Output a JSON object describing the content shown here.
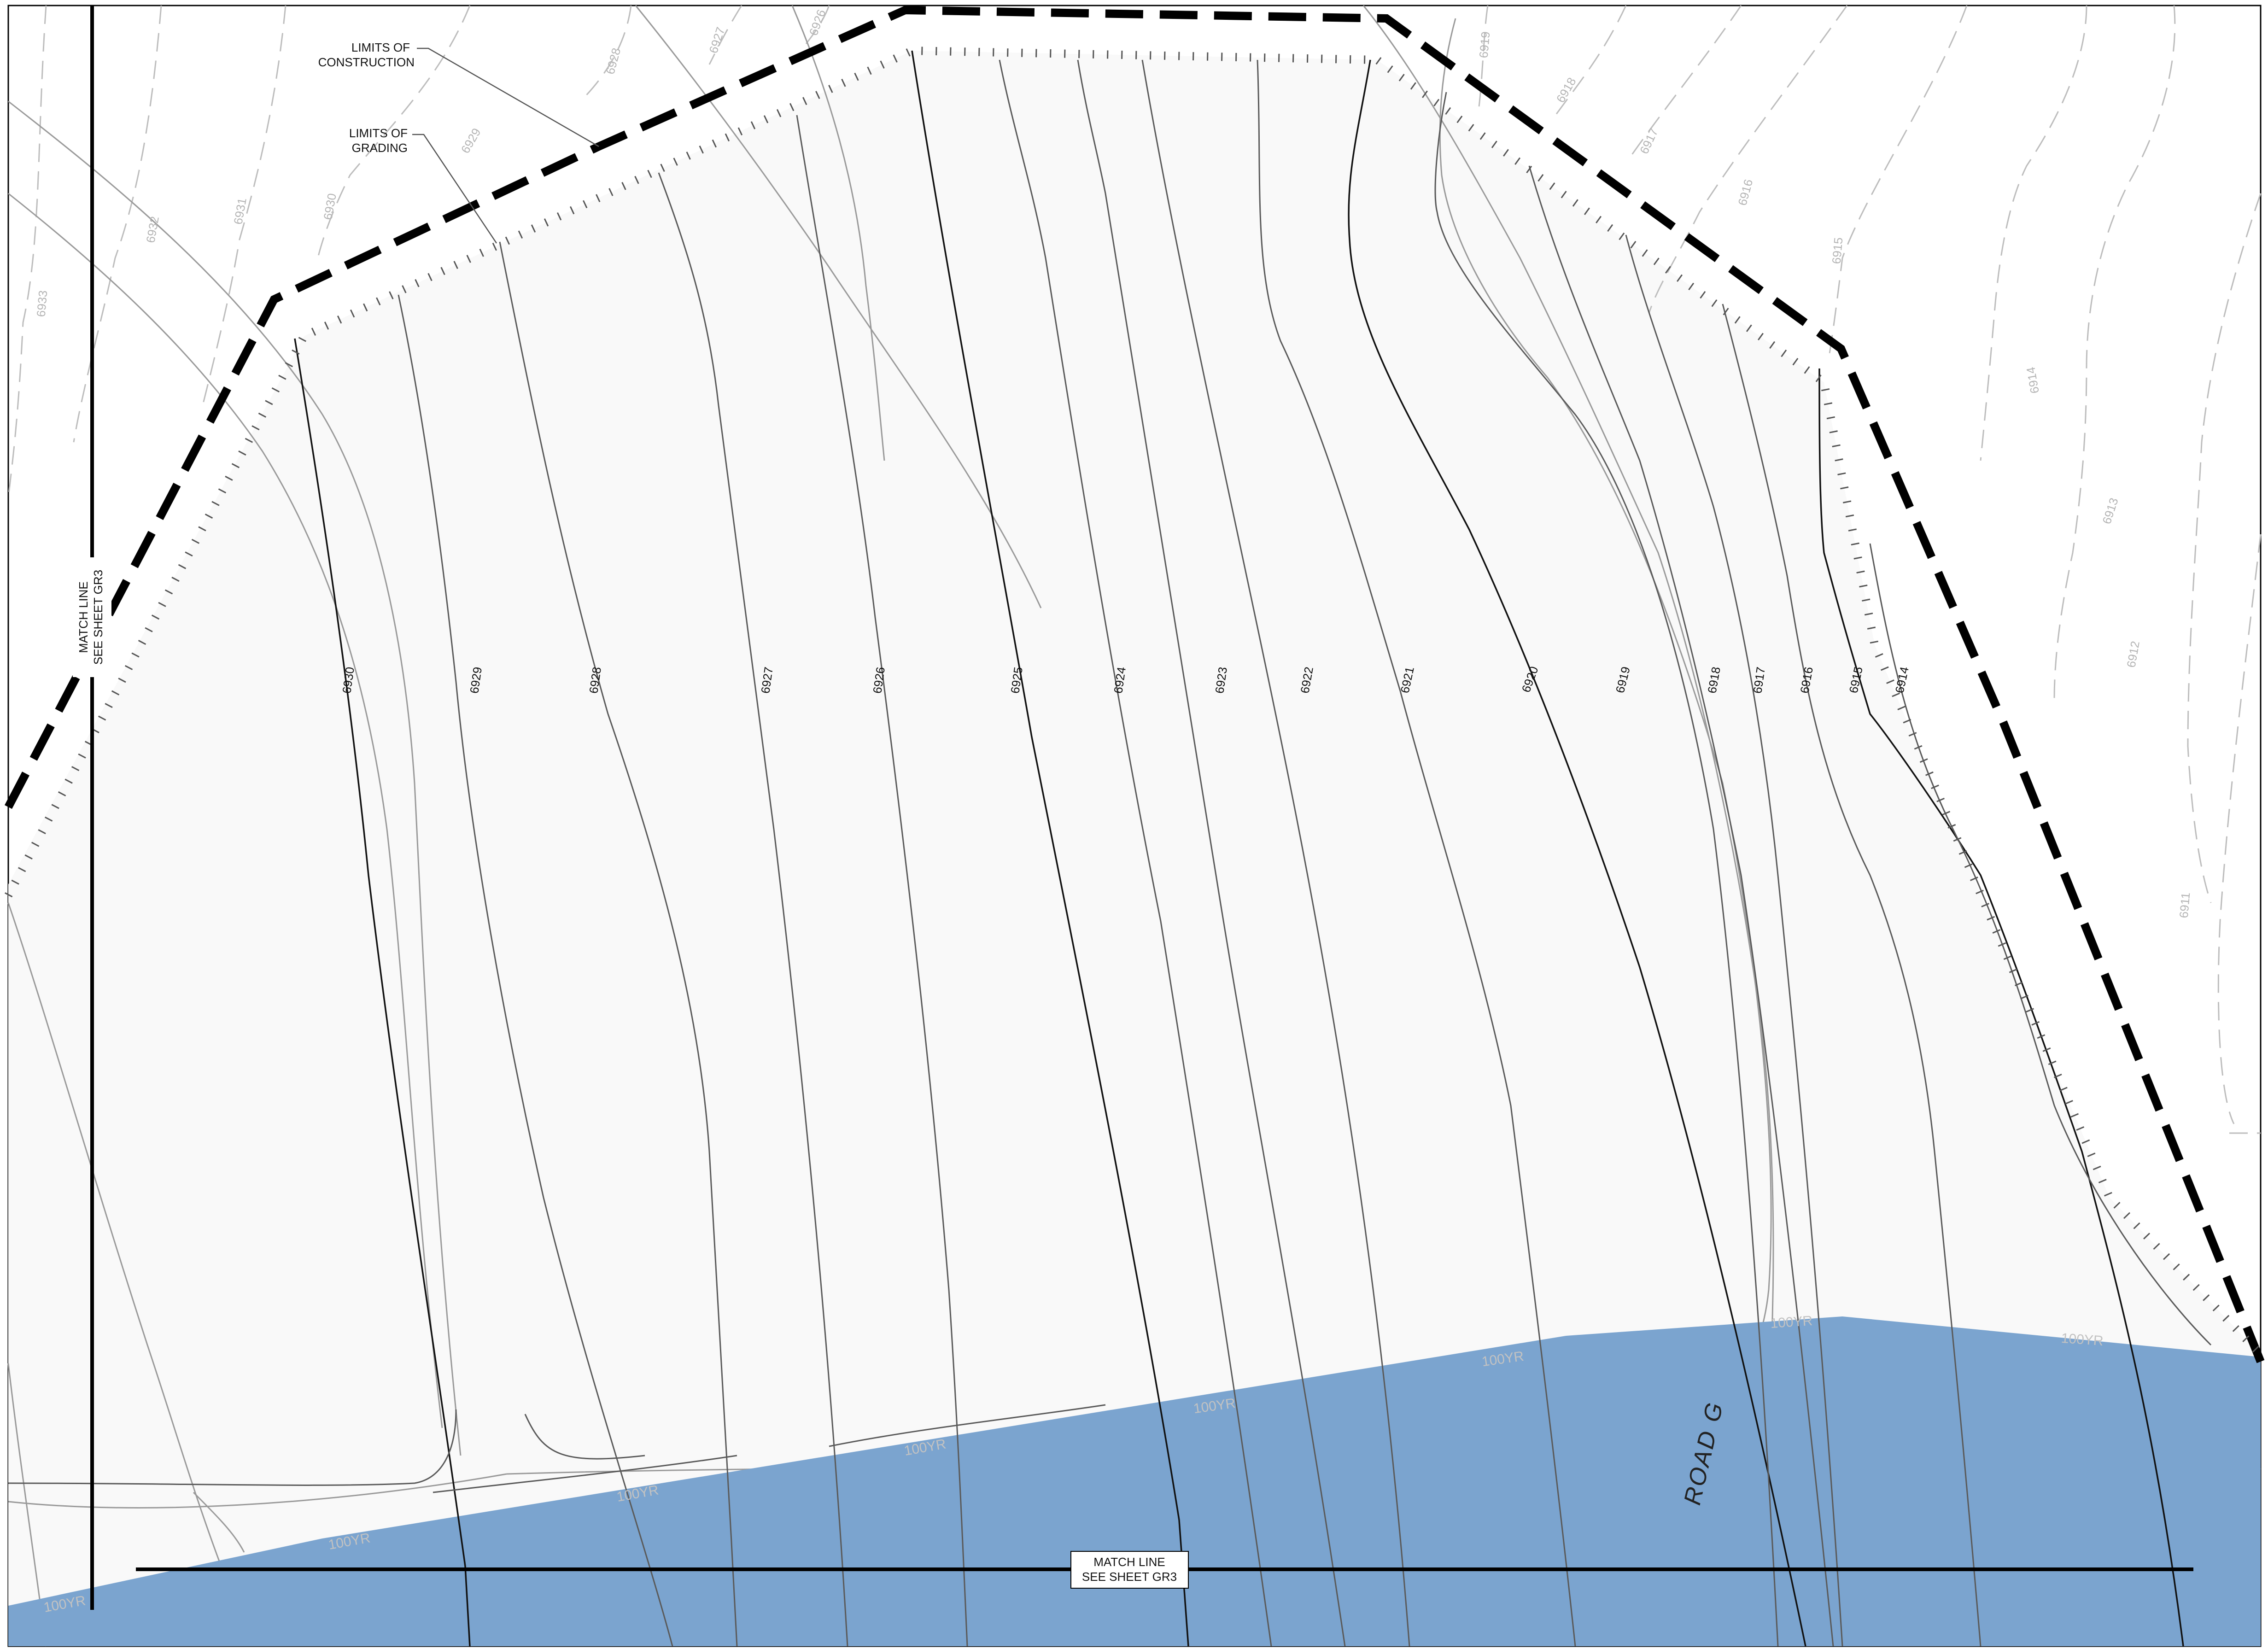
{
  "drawing": {
    "annotations": {
      "limits_construction": [
        "LIMITS OF",
        "CONSTRUCTION"
      ],
      "limits_grading": [
        "LIMITS OF",
        "GRADING"
      ],
      "road_name": "ROAD G",
      "match_line_bottom": [
        "MATCH LINE",
        "SEE SHEET GR3"
      ],
      "match_line_left": [
        "MATCH LINE",
        "SEE SHEET GR3"
      ]
    },
    "proposed_contours": [
      "6930",
      "6929",
      "6928",
      "6927",
      "6926",
      "6925",
      "6924",
      "6923",
      "6922",
      "6921",
      "6920",
      "6919",
      "6918",
      "6917",
      "6916",
      "6915",
      "6914"
    ],
    "existing_contours": [
      "6933",
      "6932",
      "6931",
      "6930",
      "6929",
      "6928",
      "6927",
      "6926",
      "6919",
      "6918",
      "6917",
      "6916",
      "6915",
      "6914",
      "6913",
      "6912",
      "6911"
    ],
    "floodplain_labels": [
      "100YR",
      "100YR",
      "100YR",
      "100YR",
      "100YR",
      "100YR",
      "100YR",
      "100YR"
    ],
    "colors": {
      "floodplain": "#7ba4cf",
      "graded_area": "#f9f9f9",
      "limits_construction": "#000000",
      "existing_contour": "#b9b9b9",
      "proposed_contour": "#333333"
    }
  }
}
